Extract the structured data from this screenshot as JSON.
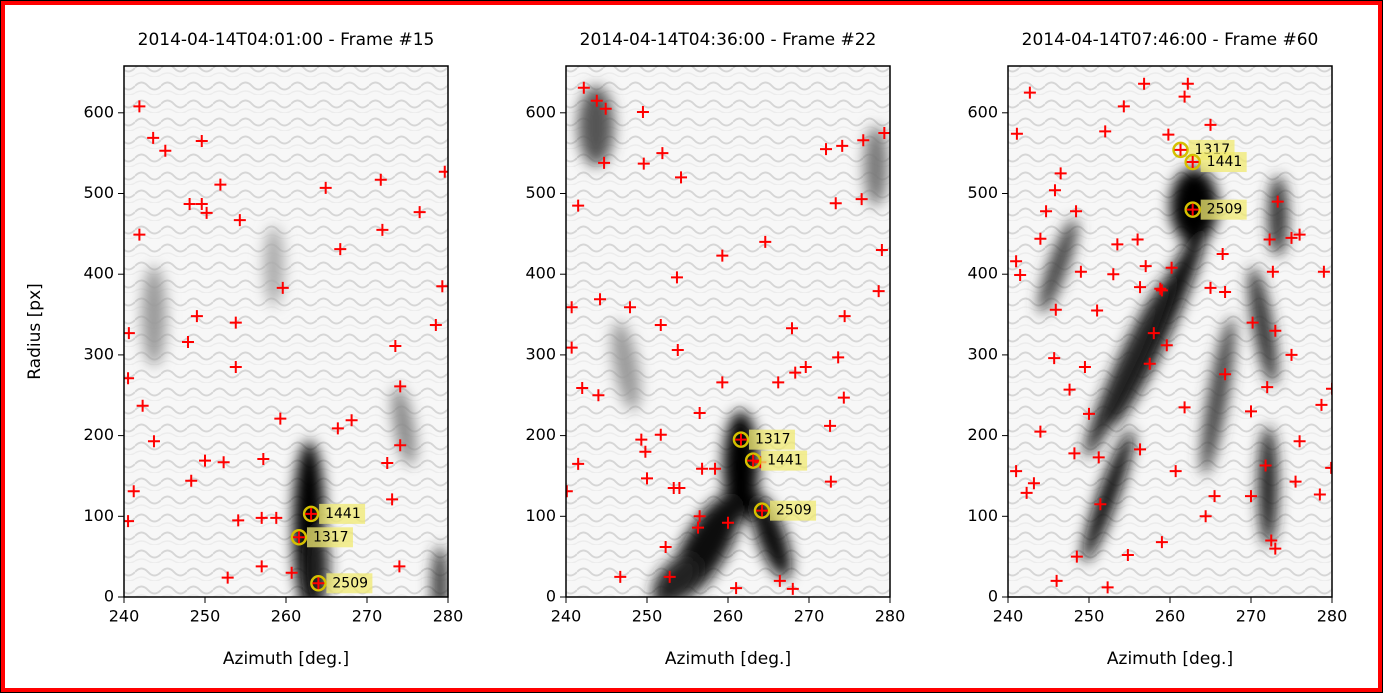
{
  "chart_data": [
    {
      "type": "scatter",
      "title": "2014-04-14T04:01:00 - Frame #15",
      "x_label": "Azimuth [deg.]",
      "y_label": "Radius [px]",
      "xlim": [
        240,
        280
      ],
      "ylim": [
        0,
        658
      ],
      "xticks": [
        240,
        250,
        260,
        270,
        280
      ],
      "yticks": [
        0,
        100,
        200,
        300,
        400,
        500,
        600
      ],
      "color": "#ff0000",
      "tracked_color": "#d4c000",
      "x": [
        241.9,
        243.6,
        245.1,
        249.6,
        248.1,
        251.9,
        249.6,
        250.2,
        254.3,
        241.9,
        264.9,
        271.7,
        279.6,
        276.5,
        271.9,
        266.7,
        259.6,
        279.3,
        240.6,
        278.5,
        249.0,
        247.9,
        253.8,
        273.5,
        253.8,
        240.5,
        274.1,
        242.3,
        243.7,
        259.3,
        266.4,
        268.1,
        274.1,
        250.0,
        252.3,
        257.2,
        241.2,
        240.5,
        248.3,
        254.1,
        257.0,
        273.1,
        274.0,
        260.7,
        257.0,
        258.8,
        252.8,
        272.5
      ],
      "values": [
        608,
        569,
        553,
        565,
        487,
        511,
        487,
        476,
        467,
        449,
        507,
        517,
        527,
        477,
        455,
        431,
        383,
        385,
        327,
        337,
        348,
        316,
        340,
        311,
        285,
        271,
        261,
        237,
        193,
        221,
        209,
        219,
        188,
        169,
        167,
        171,
        131,
        94,
        144,
        95,
        98,
        121,
        38,
        30,
        38,
        98,
        24,
        166
      ],
      "tracked": {
        "labels": [
          "1441",
          "1317",
          "2509"
        ],
        "x": [
          263.1,
          261.6,
          264.0
        ],
        "values": [
          103,
          74,
          17
        ]
      }
    },
    {
      "type": "scatter",
      "title": "2014-04-14T04:36:00 - Frame #22",
      "x_label": "Azimuth [deg.]",
      "xlim": [
        240,
        280
      ],
      "ylim": [
        0,
        658
      ],
      "xticks": [
        240,
        250,
        260,
        270,
        280
      ],
      "yticks": [
        0,
        100,
        200,
        300,
        400,
        500,
        600
      ],
      "color": "#ff0000",
      "tracked_color": "#d4c000",
      "x": [
        242.2,
        243.8,
        244.9,
        249.5,
        241.5,
        244.7,
        249.6,
        251.9,
        254.2,
        253.7,
        259.3,
        264.6,
        272.1,
        274.1,
        276.7,
        279.3,
        273.3,
        276.5,
        279.0,
        278.6,
        240.7,
        244.2,
        247.9,
        251.7,
        253.8,
        240.7,
        242.0,
        244.0,
        259.3,
        249.8,
        251.7,
        249.3,
        256.5,
        258.4,
        266.2,
        267.9,
        269.6,
        268.3,
        274.4,
        273.6,
        274.3,
        272.6,
        272.7,
        253.3,
        256.8,
        256.5,
        256.3,
        241.5,
        246.7,
        252.8,
        261.0,
        266.4,
        268.0,
        240.1,
        250.0,
        252.3,
        254.0,
        260.0,
        264.0
      ],
      "values": [
        631,
        615,
        605,
        601,
        485,
        538,
        537,
        550,
        520,
        396,
        423,
        440,
        555,
        559,
        566,
        575,
        488,
        493,
        430,
        379,
        359,
        369,
        359,
        337,
        306,
        309,
        259,
        250,
        266,
        180,
        201,
        195,
        228,
        159,
        266,
        333,
        285,
        278,
        348,
        297,
        247,
        212,
        143,
        135,
        159,
        100,
        86,
        165,
        25,
        25,
        11,
        20,
        10,
        131,
        147,
        62,
        135,
        92,
        167
      ],
      "tracked": {
        "labels": [
          "1317",
          "1441",
          "2509"
        ],
        "x": [
          261.6,
          263.1,
          264.2
        ],
        "values": [
          195,
          169,
          107
        ]
      }
    },
    {
      "type": "scatter",
      "title": "2014-04-14T07:46:00 - Frame #60",
      "x_label": "Azimuth [deg.]",
      "xlim": [
        240,
        280
      ],
      "ylim": [
        0,
        658
      ],
      "xticks": [
        240,
        250,
        260,
        270,
        280
      ],
      "yticks": [
        0,
        100,
        200,
        300,
        400,
        500,
        600
      ],
      "color": "#ff0000",
      "tracked_color": "#d4c000",
      "x": [
        241.1,
        242.7,
        241.0,
        241.5,
        244.0,
        244.7,
        245.8,
        246.5,
        248.4,
        252.0,
        254.3,
        256.8,
        253.5,
        251.0,
        249.0,
        245.7,
        245.9,
        253.0,
        256.0,
        257.0,
        256.3,
        257.5,
        258.8,
        260.2,
        259.8,
        261.8,
        262.2,
        259.0,
        258.0,
        259.6,
        256.3,
        251.2,
        251.4,
        249.5,
        250.0,
        247.6,
        248.2,
        244.0,
        243.2,
        242.3,
        241.0,
        248.5,
        246.0,
        252.3,
        254.8,
        259.0,
        260.7,
        261.8,
        265.5,
        264.4,
        266.8,
        266.5,
        265.0,
        266.8,
        270.0,
        270.2,
        270.0,
        272.0,
        272.3,
        272.7,
        273.0,
        272.5,
        273.0,
        271.8,
        275.0,
        275.5,
        276.0,
        275.0,
        276.0,
        278.7,
        279.0,
        278.5,
        279.9,
        280.0,
        273.3,
        265.0
      ],
      "values": [
        574,
        625,
        416,
        399,
        444,
        478,
        504,
        525,
        478,
        577,
        608,
        636,
        437,
        355,
        403,
        296,
        356,
        400,
        443,
        410,
        384,
        289,
        382,
        408,
        573,
        620,
        636,
        380,
        327,
        312,
        183,
        173,
        115,
        285,
        227,
        257,
        178,
        205,
        141,
        129,
        156,
        50,
        20,
        12,
        52,
        68,
        156,
        235,
        125,
        100,
        276,
        425,
        383,
        378,
        230,
        340,
        125,
        260,
        443,
        403,
        330,
        70,
        60,
        163,
        300,
        143,
        193,
        445,
        449,
        238,
        403,
        127,
        160,
        258,
        490,
        585
      ],
      "tracked": {
        "labels": [
          "1317",
          "1441",
          "2509"
        ],
        "x": [
          261.3,
          262.8,
          262.8
        ],
        "values": [
          554,
          539,
          480
        ]
      }
    }
  ]
}
